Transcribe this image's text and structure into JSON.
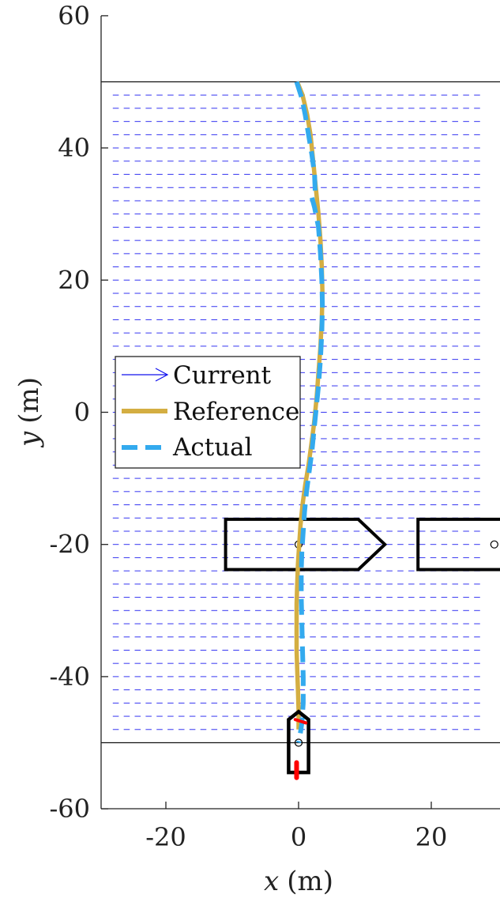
{
  "chart_data": {
    "type": "line",
    "xlabel_var": "x",
    "xlabel_unit": "(m)",
    "ylabel_var": "y",
    "ylabel_unit": "(m)",
    "xlim": [
      -30,
      30
    ],
    "ylim": [
      -60,
      60
    ],
    "xticks": [
      -20,
      0,
      20
    ],
    "yticks": [
      60,
      40,
      20,
      0,
      -20,
      -40,
      -60
    ],
    "xtick_labels": [
      "-20",
      "0",
      "20"
    ],
    "ytick_labels": [
      "60",
      "40",
      "20",
      "0",
      "-20",
      "-40",
      "-60"
    ],
    "legend": {
      "position": "middle-left",
      "entries": [
        {
          "label": "Current",
          "style": "arrow",
          "color": "#1010ee"
        },
        {
          "label": "Reference",
          "style": "solid",
          "color": "#d4ae42"
        },
        {
          "label": "Actual",
          "style": "dashed",
          "color": "#33aaee"
        }
      ]
    },
    "boundaries_y": [
      50,
      -50
    ],
    "current_field": {
      "x_range": [
        -28,
        28
      ],
      "y_range": [
        -48,
        48
      ],
      "spacing_x": 1.65,
      "spacing_y": 2.0,
      "vector_dx": 0.9,
      "color": "#1010ee"
    },
    "series": [
      {
        "name": "Reference",
        "color": "#d4ae42",
        "x": [
          -0.2,
          0.6,
          1.3,
          1.8,
          2.2,
          2.6,
          3.0,
          3.3,
          3.5,
          3.6,
          3.5,
          3.3,
          3.0,
          2.7,
          2.3,
          1.9,
          1.5,
          1.0,
          0.6,
          0.3,
          0.1,
          -0.1,
          -0.2,
          -0.3,
          -0.3,
          -0.3,
          -0.2,
          -0.1,
          0.0,
          0.0
        ],
        "y": [
          50.0,
          48.0,
          45.0,
          42.0,
          38.0,
          34.0,
          30.0,
          26.0,
          22.0,
          18.0,
          14.0,
          10.0,
          6.0,
          2.0,
          -2.0,
          -5.0,
          -8.0,
          -11.0,
          -14.0,
          -17.0,
          -20.0,
          -23.0,
          -26.0,
          -29.0,
          -32.0,
          -36.0,
          -39.0,
          -42.0,
          -45.0,
          -48.0
        ]
      },
      {
        "name": "Actual",
        "color": "#33aaee",
        "x": [
          -0.3,
          0.5,
          1.0,
          1.5,
          2.0,
          2.4,
          2.5,
          2.0,
          2.4,
          3.0,
          3.3,
          3.5,
          3.6,
          3.5,
          3.3,
          3.0,
          2.7,
          2.3,
          2.0,
          1.6,
          1.2,
          0.9,
          0.7,
          0.5,
          0.4,
          0.4,
          0.5,
          0.6,
          0.7,
          0.7,
          0.5,
          0.2,
          0.0
        ],
        "y": [
          50.0,
          47.5,
          45.0,
          42.0,
          39.0,
          36.0,
          33.5,
          32.5,
          31.0,
          28.0,
          24.0,
          20.0,
          16.0,
          12.0,
          8.0,
          4.0,
          1.0,
          -3.0,
          -6.0,
          -9.0,
          -12.0,
          -15.0,
          -18.0,
          -21.0,
          -24.0,
          -28.0,
          -32.0,
          -36.0,
          -40.0,
          -44.0,
          -47.0,
          -49.0,
          -50.0
        ]
      }
    ],
    "obstacles": [
      {
        "type": "ship",
        "center": [
          0,
          -20
        ],
        "x_stern": -11,
        "x_bow_start": 9,
        "x_bow_tip": 13,
        "half_width": 3.8
      },
      {
        "type": "ship",
        "center": [
          29.5,
          -20
        ],
        "x_stern": 18,
        "half_width": 3.8
      }
    ],
    "own_ship": {
      "center": [
        0,
        -50
      ],
      "half_width": 1.5,
      "y_top": -46.5,
      "y_bottom": -54.5
    },
    "thrust_markers": {
      "color": "#ff0000",
      "bow": [
        -0.5,
        -46.5
      ],
      "stern": [
        -0.3,
        -54.5
      ]
    }
  }
}
